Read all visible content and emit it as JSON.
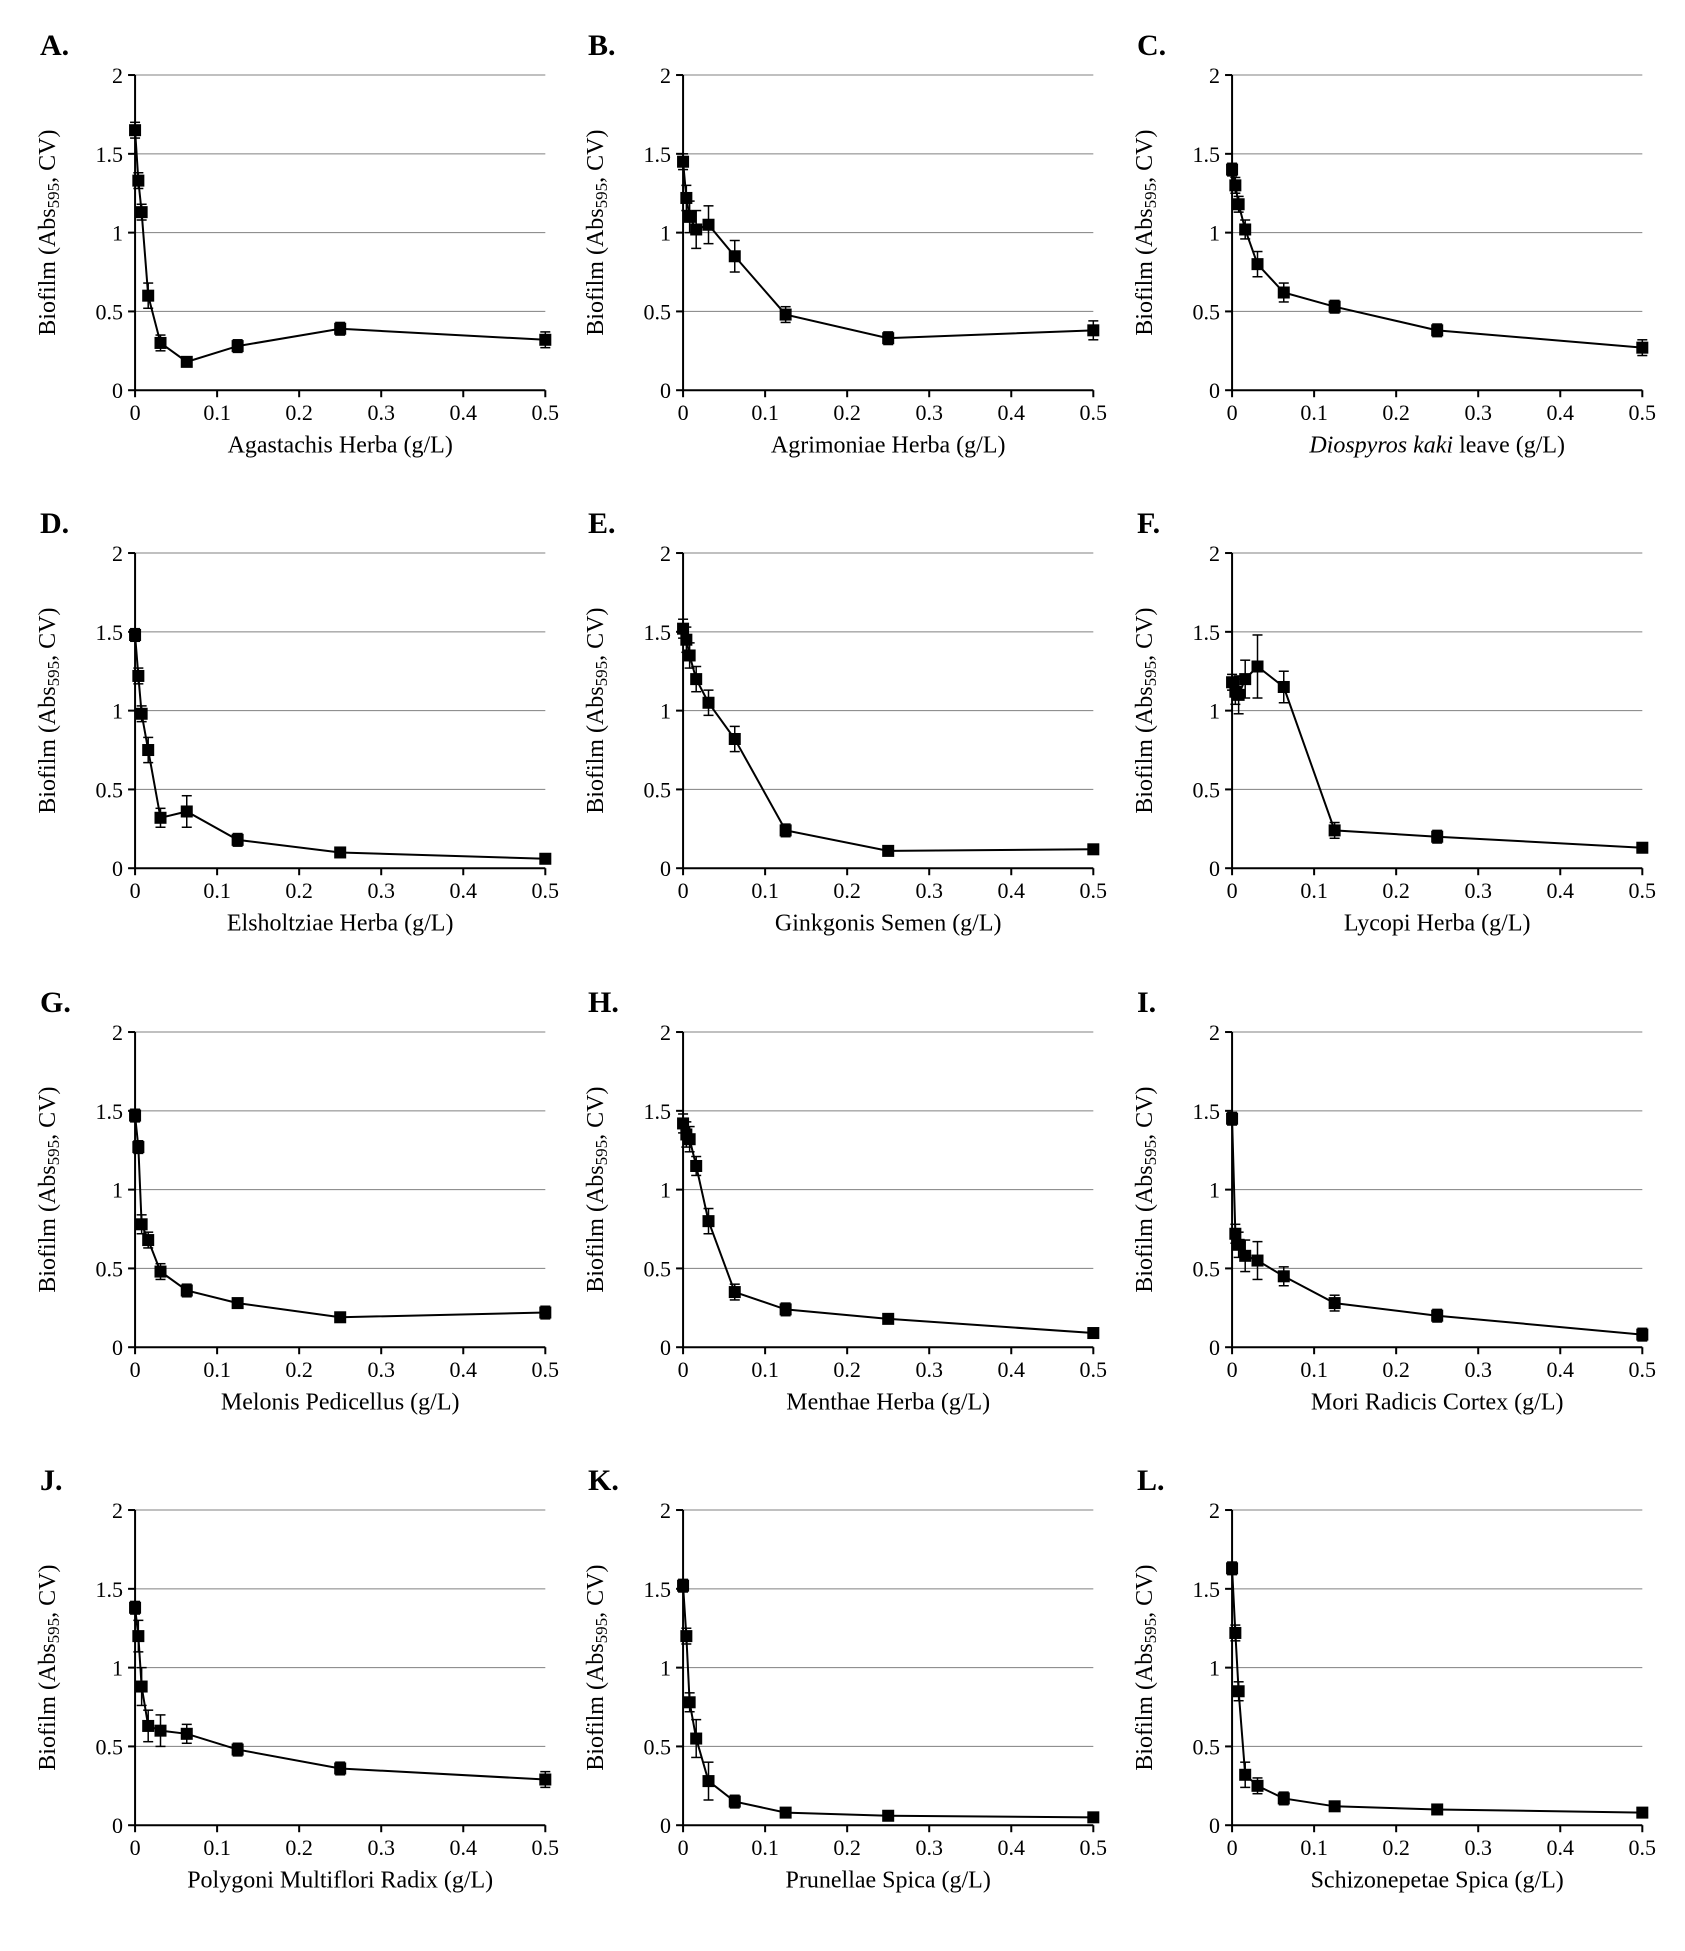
{
  "figure": {
    "background_color": "#ffffff",
    "grid_color": "#808080",
    "axis_color": "#000000",
    "marker_color": "#000000",
    "line_color": "#000000",
    "text_color": "#000000",
    "panel_label_fontsize": 30,
    "panel_label_fontweight": "bold",
    "axis_label_fontsize": 24,
    "tick_fontsize": 22,
    "ylabel_html": "Biofilm (Abs<tspan baseline-shift='sub' font-size='16'>595</tspan>, CV)",
    "xlim": [
      0,
      0.5
    ],
    "ylim": [
      0,
      2
    ],
    "yticks": [
      0,
      0.5,
      1,
      1.5,
      2
    ],
    "xticks": [
      0,
      0.1,
      0.2,
      0.3,
      0.4,
      0.5
    ],
    "marker_size": 6,
    "line_width": 2
  },
  "panels": [
    {
      "letter": "A.",
      "xlabel": "Agastachis Herba (g/L)",
      "xlabel_italic": false,
      "data": [
        {
          "x": 0.0,
          "y": 1.65,
          "err": 0.05
        },
        {
          "x": 0.004,
          "y": 1.33,
          "err": 0.05
        },
        {
          "x": 0.008,
          "y": 1.13,
          "err": 0.05
        },
        {
          "x": 0.016,
          "y": 0.6,
          "err": 0.08
        },
        {
          "x": 0.031,
          "y": 0.3,
          "err": 0.05
        },
        {
          "x": 0.063,
          "y": 0.18,
          "err": 0.03
        },
        {
          "x": 0.125,
          "y": 0.28,
          "err": 0.04
        },
        {
          "x": 0.25,
          "y": 0.39,
          "err": 0.04
        },
        {
          "x": 0.5,
          "y": 0.32,
          "err": 0.05
        }
      ]
    },
    {
      "letter": "B.",
      "xlabel": "Agrimoniae Herba (g/L)",
      "xlabel_italic": false,
      "data": [
        {
          "x": 0.0,
          "y": 1.45,
          "err": 0.05
        },
        {
          "x": 0.004,
          "y": 1.22,
          "err": 0.08
        },
        {
          "x": 0.008,
          "y": 1.1,
          "err": 0.1
        },
        {
          "x": 0.016,
          "y": 1.02,
          "err": 0.12
        },
        {
          "x": 0.031,
          "y": 1.05,
          "err": 0.12
        },
        {
          "x": 0.063,
          "y": 0.85,
          "err": 0.1
        },
        {
          "x": 0.125,
          "y": 0.48,
          "err": 0.05
        },
        {
          "x": 0.25,
          "y": 0.33,
          "err": 0.04
        },
        {
          "x": 0.5,
          "y": 0.38,
          "err": 0.06
        }
      ]
    },
    {
      "letter": "C.",
      "xlabel_parts": [
        {
          "text": "Diospyros kaki",
          "italic": true
        },
        {
          "text": " leave (g/L)",
          "italic": false
        }
      ],
      "data": [
        {
          "x": 0.0,
          "y": 1.4,
          "err": 0.04
        },
        {
          "x": 0.004,
          "y": 1.3,
          "err": 0.05
        },
        {
          "x": 0.008,
          "y": 1.18,
          "err": 0.05
        },
        {
          "x": 0.016,
          "y": 1.02,
          "err": 0.06
        },
        {
          "x": 0.031,
          "y": 0.8,
          "err": 0.08
        },
        {
          "x": 0.063,
          "y": 0.62,
          "err": 0.06
        },
        {
          "x": 0.125,
          "y": 0.53,
          "err": 0.04
        },
        {
          "x": 0.25,
          "y": 0.38,
          "err": 0.04
        },
        {
          "x": 0.5,
          "y": 0.27,
          "err": 0.05
        }
      ]
    },
    {
      "letter": "D.",
      "xlabel": "Elsholtziae Herba (g/L)",
      "xlabel_italic": false,
      "data": [
        {
          "x": 0.0,
          "y": 1.48,
          "err": 0.04
        },
        {
          "x": 0.004,
          "y": 1.22,
          "err": 0.05
        },
        {
          "x": 0.008,
          "y": 0.98,
          "err": 0.05
        },
        {
          "x": 0.016,
          "y": 0.75,
          "err": 0.08
        },
        {
          "x": 0.031,
          "y": 0.32,
          "err": 0.06
        },
        {
          "x": 0.063,
          "y": 0.36,
          "err": 0.1
        },
        {
          "x": 0.125,
          "y": 0.18,
          "err": 0.04
        },
        {
          "x": 0.25,
          "y": 0.1,
          "err": 0.03
        },
        {
          "x": 0.5,
          "y": 0.06,
          "err": 0.03
        }
      ]
    },
    {
      "letter": "E.",
      "xlabel": "Ginkgonis Semen (g/L)",
      "xlabel_italic": false,
      "data": [
        {
          "x": 0.0,
          "y": 1.52,
          "err": 0.06
        },
        {
          "x": 0.004,
          "y": 1.45,
          "err": 0.08
        },
        {
          "x": 0.008,
          "y": 1.35,
          "err": 0.08
        },
        {
          "x": 0.016,
          "y": 1.2,
          "err": 0.08
        },
        {
          "x": 0.031,
          "y": 1.05,
          "err": 0.08
        },
        {
          "x": 0.063,
          "y": 0.82,
          "err": 0.08
        },
        {
          "x": 0.125,
          "y": 0.24,
          "err": 0.04
        },
        {
          "x": 0.25,
          "y": 0.11,
          "err": 0.03
        },
        {
          "x": 0.5,
          "y": 0.12,
          "err": 0.03
        }
      ]
    },
    {
      "letter": "F.",
      "xlabel": "Lycopi Herba (g/L)",
      "xlabel_italic": false,
      "data": [
        {
          "x": 0.0,
          "y": 1.18,
          "err": 0.05
        },
        {
          "x": 0.004,
          "y": 1.12,
          "err": 0.08
        },
        {
          "x": 0.008,
          "y": 1.1,
          "err": 0.12
        },
        {
          "x": 0.016,
          "y": 1.2,
          "err": 0.12
        },
        {
          "x": 0.031,
          "y": 1.28,
          "err": 0.2
        },
        {
          "x": 0.063,
          "y": 1.15,
          "err": 0.1
        },
        {
          "x": 0.125,
          "y": 0.24,
          "err": 0.05
        },
        {
          "x": 0.25,
          "y": 0.2,
          "err": 0.04
        },
        {
          "x": 0.5,
          "y": 0.13,
          "err": 0.03
        }
      ]
    },
    {
      "letter": "G.",
      "xlabel": "Melonis Pedicellus (g/L)",
      "xlabel_italic": false,
      "data": [
        {
          "x": 0.0,
          "y": 1.47,
          "err": 0.04
        },
        {
          "x": 0.004,
          "y": 1.27,
          "err": 0.04
        },
        {
          "x": 0.008,
          "y": 0.78,
          "err": 0.06
        },
        {
          "x": 0.016,
          "y": 0.68,
          "err": 0.05
        },
        {
          "x": 0.031,
          "y": 0.48,
          "err": 0.05
        },
        {
          "x": 0.063,
          "y": 0.36,
          "err": 0.04
        },
        {
          "x": 0.125,
          "y": 0.28,
          "err": 0.03
        },
        {
          "x": 0.25,
          "y": 0.19,
          "err": 0.03
        },
        {
          "x": 0.5,
          "y": 0.22,
          "err": 0.04
        }
      ]
    },
    {
      "letter": "H.",
      "xlabel": "Menthae Herba (g/L)",
      "xlabel_italic": false,
      "data": [
        {
          "x": 0.0,
          "y": 1.42,
          "err": 0.06
        },
        {
          "x": 0.004,
          "y": 1.35,
          "err": 0.08
        },
        {
          "x": 0.008,
          "y": 1.32,
          "err": 0.08
        },
        {
          "x": 0.016,
          "y": 1.15,
          "err": 0.06
        },
        {
          "x": 0.031,
          "y": 0.8,
          "err": 0.08
        },
        {
          "x": 0.063,
          "y": 0.35,
          "err": 0.05
        },
        {
          "x": 0.125,
          "y": 0.24,
          "err": 0.04
        },
        {
          "x": 0.25,
          "y": 0.18,
          "err": 0.03
        },
        {
          "x": 0.5,
          "y": 0.09,
          "err": 0.03
        }
      ]
    },
    {
      "letter": "I.",
      "xlabel": "Mori Radicis Cortex (g/L)",
      "xlabel_italic": false,
      "data": [
        {
          "x": 0.0,
          "y": 1.45,
          "err": 0.04
        },
        {
          "x": 0.004,
          "y": 0.72,
          "err": 0.06
        },
        {
          "x": 0.008,
          "y": 0.65,
          "err": 0.08
        },
        {
          "x": 0.016,
          "y": 0.58,
          "err": 0.1
        },
        {
          "x": 0.031,
          "y": 0.55,
          "err": 0.12
        },
        {
          "x": 0.063,
          "y": 0.45,
          "err": 0.06
        },
        {
          "x": 0.125,
          "y": 0.28,
          "err": 0.05
        },
        {
          "x": 0.25,
          "y": 0.2,
          "err": 0.04
        },
        {
          "x": 0.5,
          "y": 0.08,
          "err": 0.04
        }
      ]
    },
    {
      "letter": "J.",
      "xlabel": "Polygoni Multiflori Radix (g/L)",
      "xlabel_italic": false,
      "data": [
        {
          "x": 0.0,
          "y": 1.38,
          "err": 0.04
        },
        {
          "x": 0.004,
          "y": 1.2,
          "err": 0.1
        },
        {
          "x": 0.008,
          "y": 0.88,
          "err": 0.12
        },
        {
          "x": 0.016,
          "y": 0.63,
          "err": 0.1
        },
        {
          "x": 0.031,
          "y": 0.6,
          "err": 0.1
        },
        {
          "x": 0.063,
          "y": 0.58,
          "err": 0.06
        },
        {
          "x": 0.125,
          "y": 0.48,
          "err": 0.04
        },
        {
          "x": 0.25,
          "y": 0.36,
          "err": 0.04
        },
        {
          "x": 0.5,
          "y": 0.29,
          "err": 0.05
        }
      ]
    },
    {
      "letter": "K.",
      "xlabel": "Prunellae Spica (g/L)",
      "xlabel_italic": false,
      "data": [
        {
          "x": 0.0,
          "y": 1.52,
          "err": 0.04
        },
        {
          "x": 0.004,
          "y": 1.2,
          "err": 0.05
        },
        {
          "x": 0.008,
          "y": 0.78,
          "err": 0.06
        },
        {
          "x": 0.016,
          "y": 0.55,
          "err": 0.12
        },
        {
          "x": 0.031,
          "y": 0.28,
          "err": 0.12
        },
        {
          "x": 0.063,
          "y": 0.15,
          "err": 0.04
        },
        {
          "x": 0.125,
          "y": 0.08,
          "err": 0.03
        },
        {
          "x": 0.25,
          "y": 0.06,
          "err": 0.02
        },
        {
          "x": 0.5,
          "y": 0.05,
          "err": 0.03
        }
      ]
    },
    {
      "letter": "L.",
      "xlabel": "Schizonepetae Spica (g/L)",
      "xlabel_italic": false,
      "data": [
        {
          "x": 0.0,
          "y": 1.63,
          "err": 0.04
        },
        {
          "x": 0.004,
          "y": 1.22,
          "err": 0.05
        },
        {
          "x": 0.008,
          "y": 0.85,
          "err": 0.06
        },
        {
          "x": 0.016,
          "y": 0.32,
          "err": 0.08
        },
        {
          "x": 0.031,
          "y": 0.25,
          "err": 0.05
        },
        {
          "x": 0.063,
          "y": 0.17,
          "err": 0.04
        },
        {
          "x": 0.125,
          "y": 0.12,
          "err": 0.03
        },
        {
          "x": 0.25,
          "y": 0.1,
          "err": 0.02
        },
        {
          "x": 0.5,
          "y": 0.08,
          "err": 0.03
        }
      ]
    }
  ]
}
